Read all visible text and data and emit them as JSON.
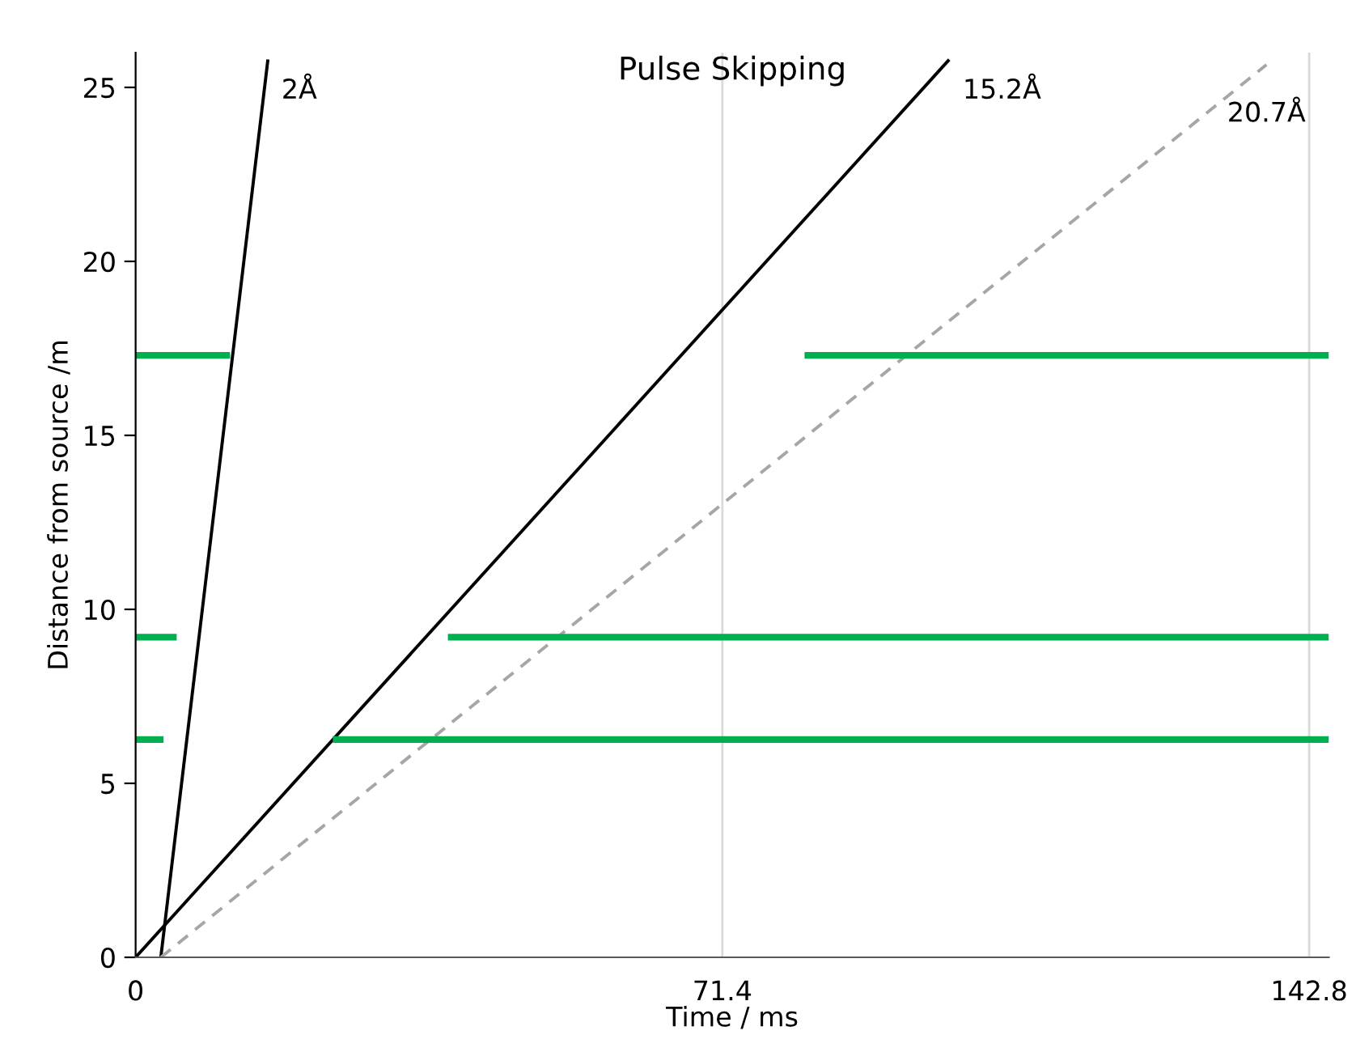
{
  "chart_data": {
    "type": "line",
    "title": "Pulse Skipping",
    "xlabel": "Time / ms",
    "ylabel": "Distance from source /m",
    "xlim": [
      0,
      145.2
    ],
    "xticks": [
      0,
      71.4,
      142.8
    ],
    "ylim": [
      0,
      26
    ],
    "yticks": [
      0,
      5,
      10,
      15,
      20,
      25
    ],
    "grid": "x",
    "legend": false,
    "series": [
      {
        "name": "2Å",
        "color": "#000000",
        "line_style": "solid",
        "x": [
          3.07,
          16.1
        ],
        "values": [
          0,
          25.8
        ]
      },
      {
        "name": "15.2Å",
        "color": "#000000",
        "line_style": "solid",
        "x": [
          0,
          99.0
        ],
        "values": [
          0,
          25.8
        ]
      },
      {
        "name": "20.7Å",
        "color": "#a6a6a6",
        "line_style": "dashed",
        "x": [
          3.07,
          137.6
        ],
        "values": [
          0,
          25.65
        ]
      },
      {
        "color": "#00b050",
        "line_style": "solid",
        "x": [
          0,
          11.5
        ],
        "values": [
          17.3,
          17.3
        ]
      },
      {
        "color": "#00b050",
        "line_style": "solid",
        "x": [
          81.4,
          145.2
        ],
        "values": [
          17.3,
          17.3
        ]
      },
      {
        "color": "#00b050",
        "line_style": "solid",
        "x": [
          0,
          5.0
        ],
        "values": [
          9.2,
          9.2
        ]
      },
      {
        "color": "#00b050",
        "line_style": "solid",
        "x": [
          38.0,
          145.2
        ],
        "values": [
          9.2,
          9.2
        ]
      },
      {
        "color": "#00b050",
        "line_style": "solid",
        "x": [
          0,
          3.4
        ],
        "values": [
          6.26,
          6.26
        ]
      },
      {
        "color": "#00b050",
        "line_style": "solid",
        "x": [
          24.0,
          145.2
        ],
        "values": [
          6.26,
          6.26
        ]
      }
    ]
  }
}
